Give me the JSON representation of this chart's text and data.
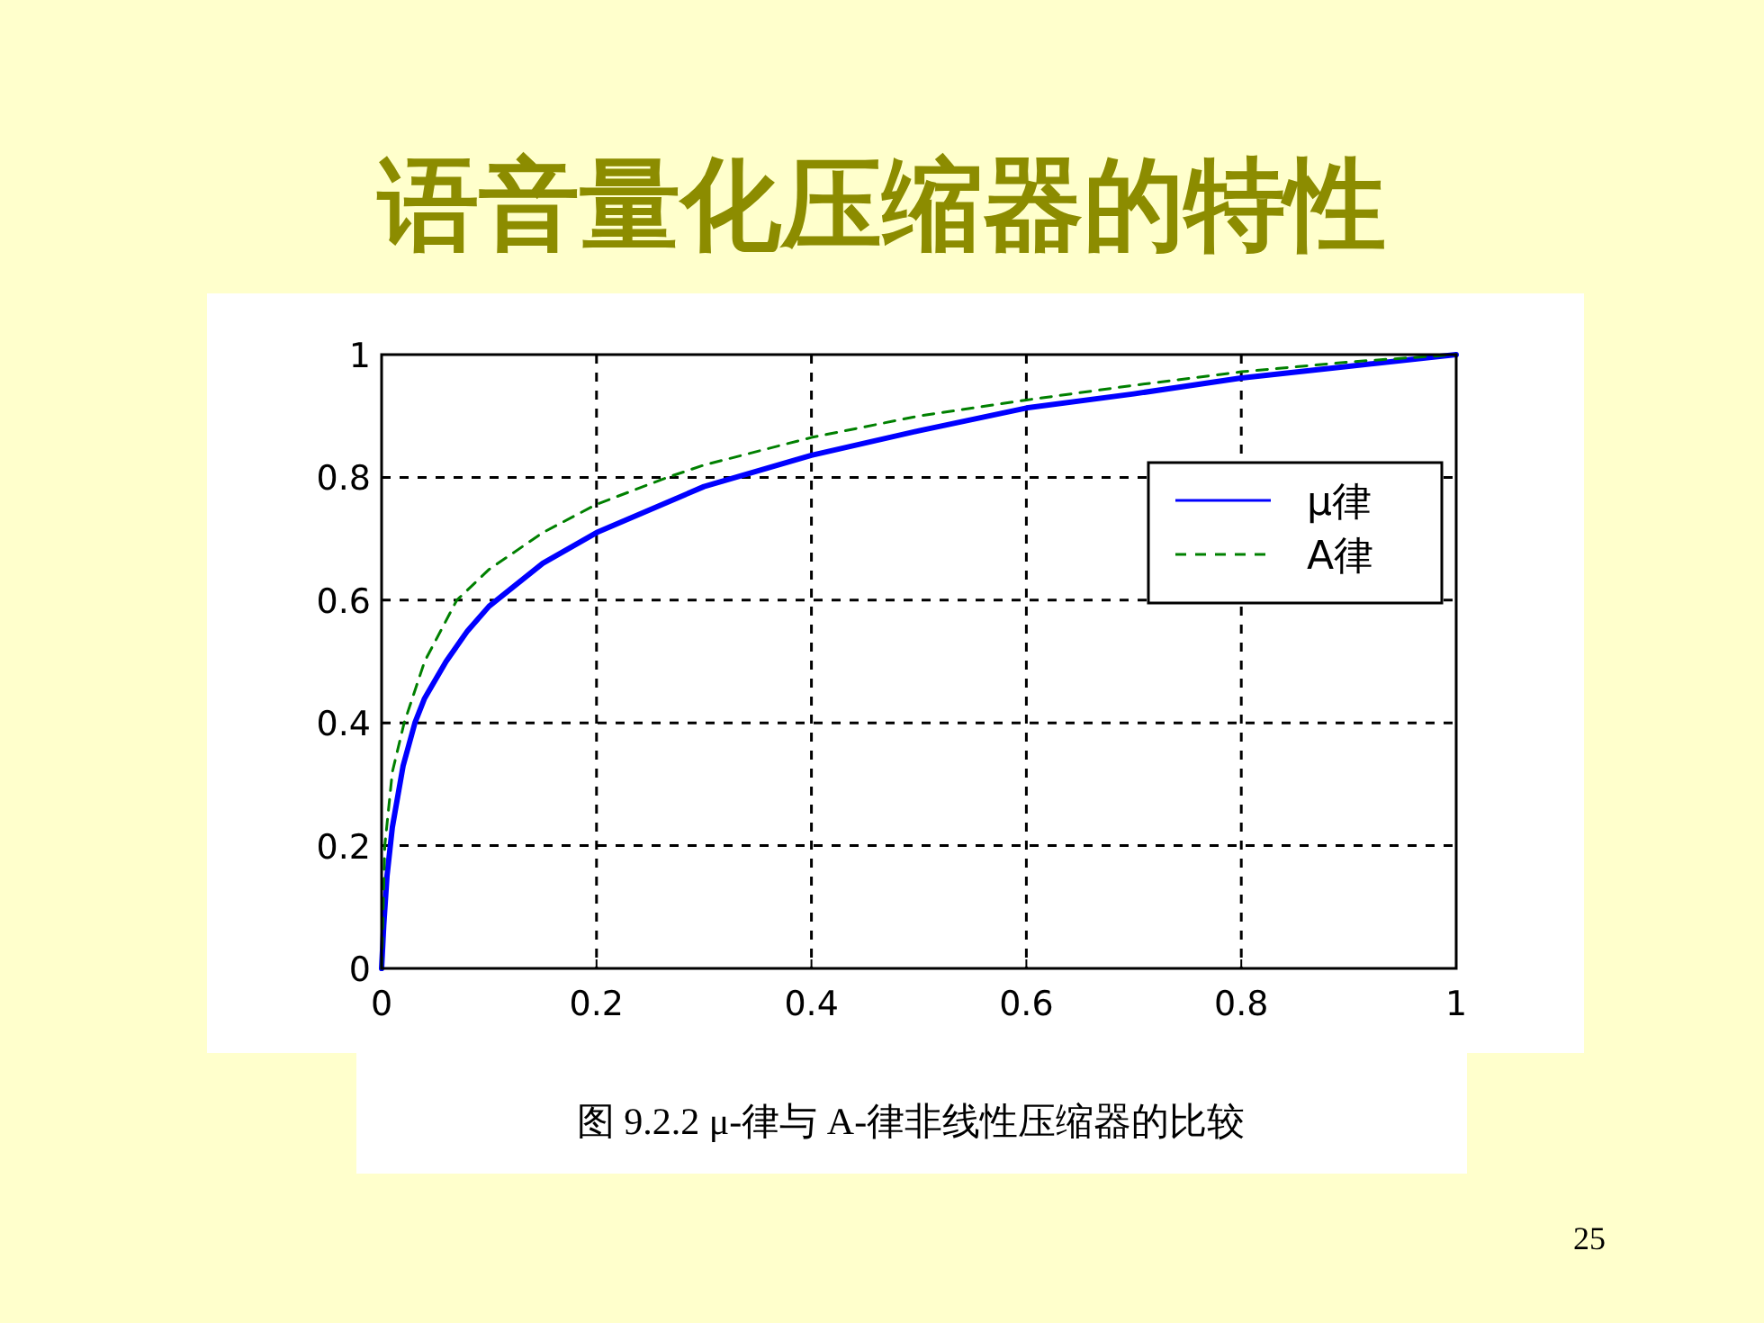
{
  "chart_data": {
    "type": "line",
    "title": "语音量化压缩器的特性",
    "annotations": [
      "图 9.2.2 μ-律与 A-律非线性压缩器的比较",
      "25"
    ],
    "series": [
      {
        "name": "μ律",
        "color": "#0000ff",
        "line_style": "solid",
        "x": [
          0,
          0.002,
          0.005,
          0.01,
          0.02,
          0.031,
          0.04,
          0.06,
          0.08,
          0.1,
          0.15,
          0.2,
          0.3,
          0.4,
          0.5,
          0.6,
          0.7,
          0.8,
          0.9,
          1
        ],
        "values": [
          0,
          0.07,
          0.15,
          0.23,
          0.33,
          0.4,
          0.44,
          0.5,
          0.55,
          0.59,
          0.66,
          0.71,
          0.785,
          0.836,
          0.876,
          0.913,
          0.936,
          0.962,
          0.981,
          1
        ]
      },
      {
        "name": "A律",
        "color": "#008000",
        "line_style": "dashed",
        "x": [
          0,
          0.003,
          0.01,
          0.021,
          0.04,
          0.07,
          0.1,
          0.15,
          0.2,
          0.266,
          0.3,
          0.4,
          0.5,
          0.6,
          0.7,
          0.8,
          0.9,
          1
        ],
        "values": [
          0,
          0.2,
          0.32,
          0.4,
          0.5,
          0.6,
          0.65,
          0.71,
          0.756,
          0.8,
          0.82,
          0.865,
          0.9,
          0.926,
          0.95,
          0.972,
          0.988,
          1
        ]
      }
    ],
    "xlim": [
      0,
      1
    ],
    "ylim": [
      0,
      1
    ],
    "xticks": [
      0,
      0.2,
      0.4,
      0.6,
      0.8,
      1
    ],
    "yticks": [
      0,
      0.2,
      0.4,
      0.6,
      0.8,
      1
    ],
    "grid": true,
    "legend": "top right",
    "marker": "none"
  }
}
